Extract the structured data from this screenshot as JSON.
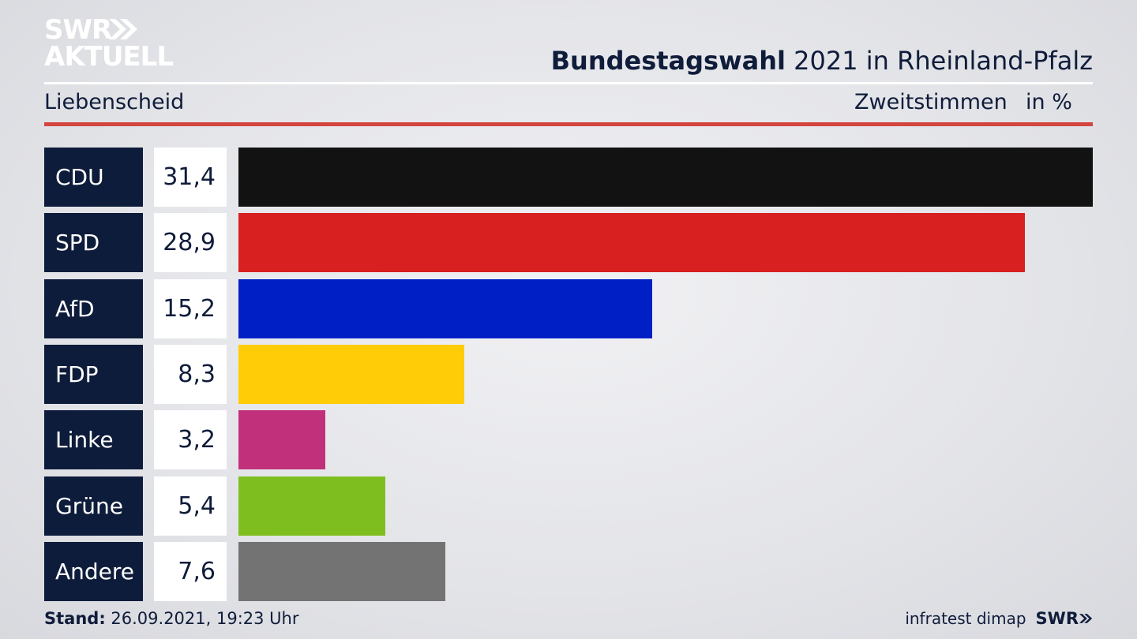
{
  "brand": {
    "line1": "SWR",
    "line2": "AKTUELL",
    "footer_logo": "SWR"
  },
  "header": {
    "title_bold": "Bundestagswahl",
    "title_rest": " 2021 in Rheinland-Pfalz",
    "subtitle": "Liebenscheid",
    "measure": "Zweitstimmen",
    "unit": "in %"
  },
  "chart_data": {
    "type": "bar",
    "orientation": "horizontal",
    "categories": [
      "CDU",
      "SPD",
      "AfD",
      "FDP",
      "Linke",
      "Grüne",
      "Andere"
    ],
    "values": [
      31.4,
      28.9,
      15.2,
      8.3,
      3.2,
      5.4,
      7.6
    ],
    "value_labels": [
      "31,4",
      "28,9",
      "15,2",
      "8,3",
      "3,2",
      "5,4",
      "7,6"
    ],
    "colors": [
      "#121212",
      "#d7201f",
      "#0020c6",
      "#ffcc07",
      "#c1307a",
      "#7ebf1f",
      "#737373"
    ],
    "title": "Bundestagswahl 2021 in Rheinland-Pfalz",
    "xlabel": "",
    "ylabel": "",
    "unit": "in %"
  },
  "footer": {
    "stand_label": "Stand:",
    "stand_value": " 26.09.2021, 19:23 Uhr",
    "source": "infratest dimap"
  }
}
